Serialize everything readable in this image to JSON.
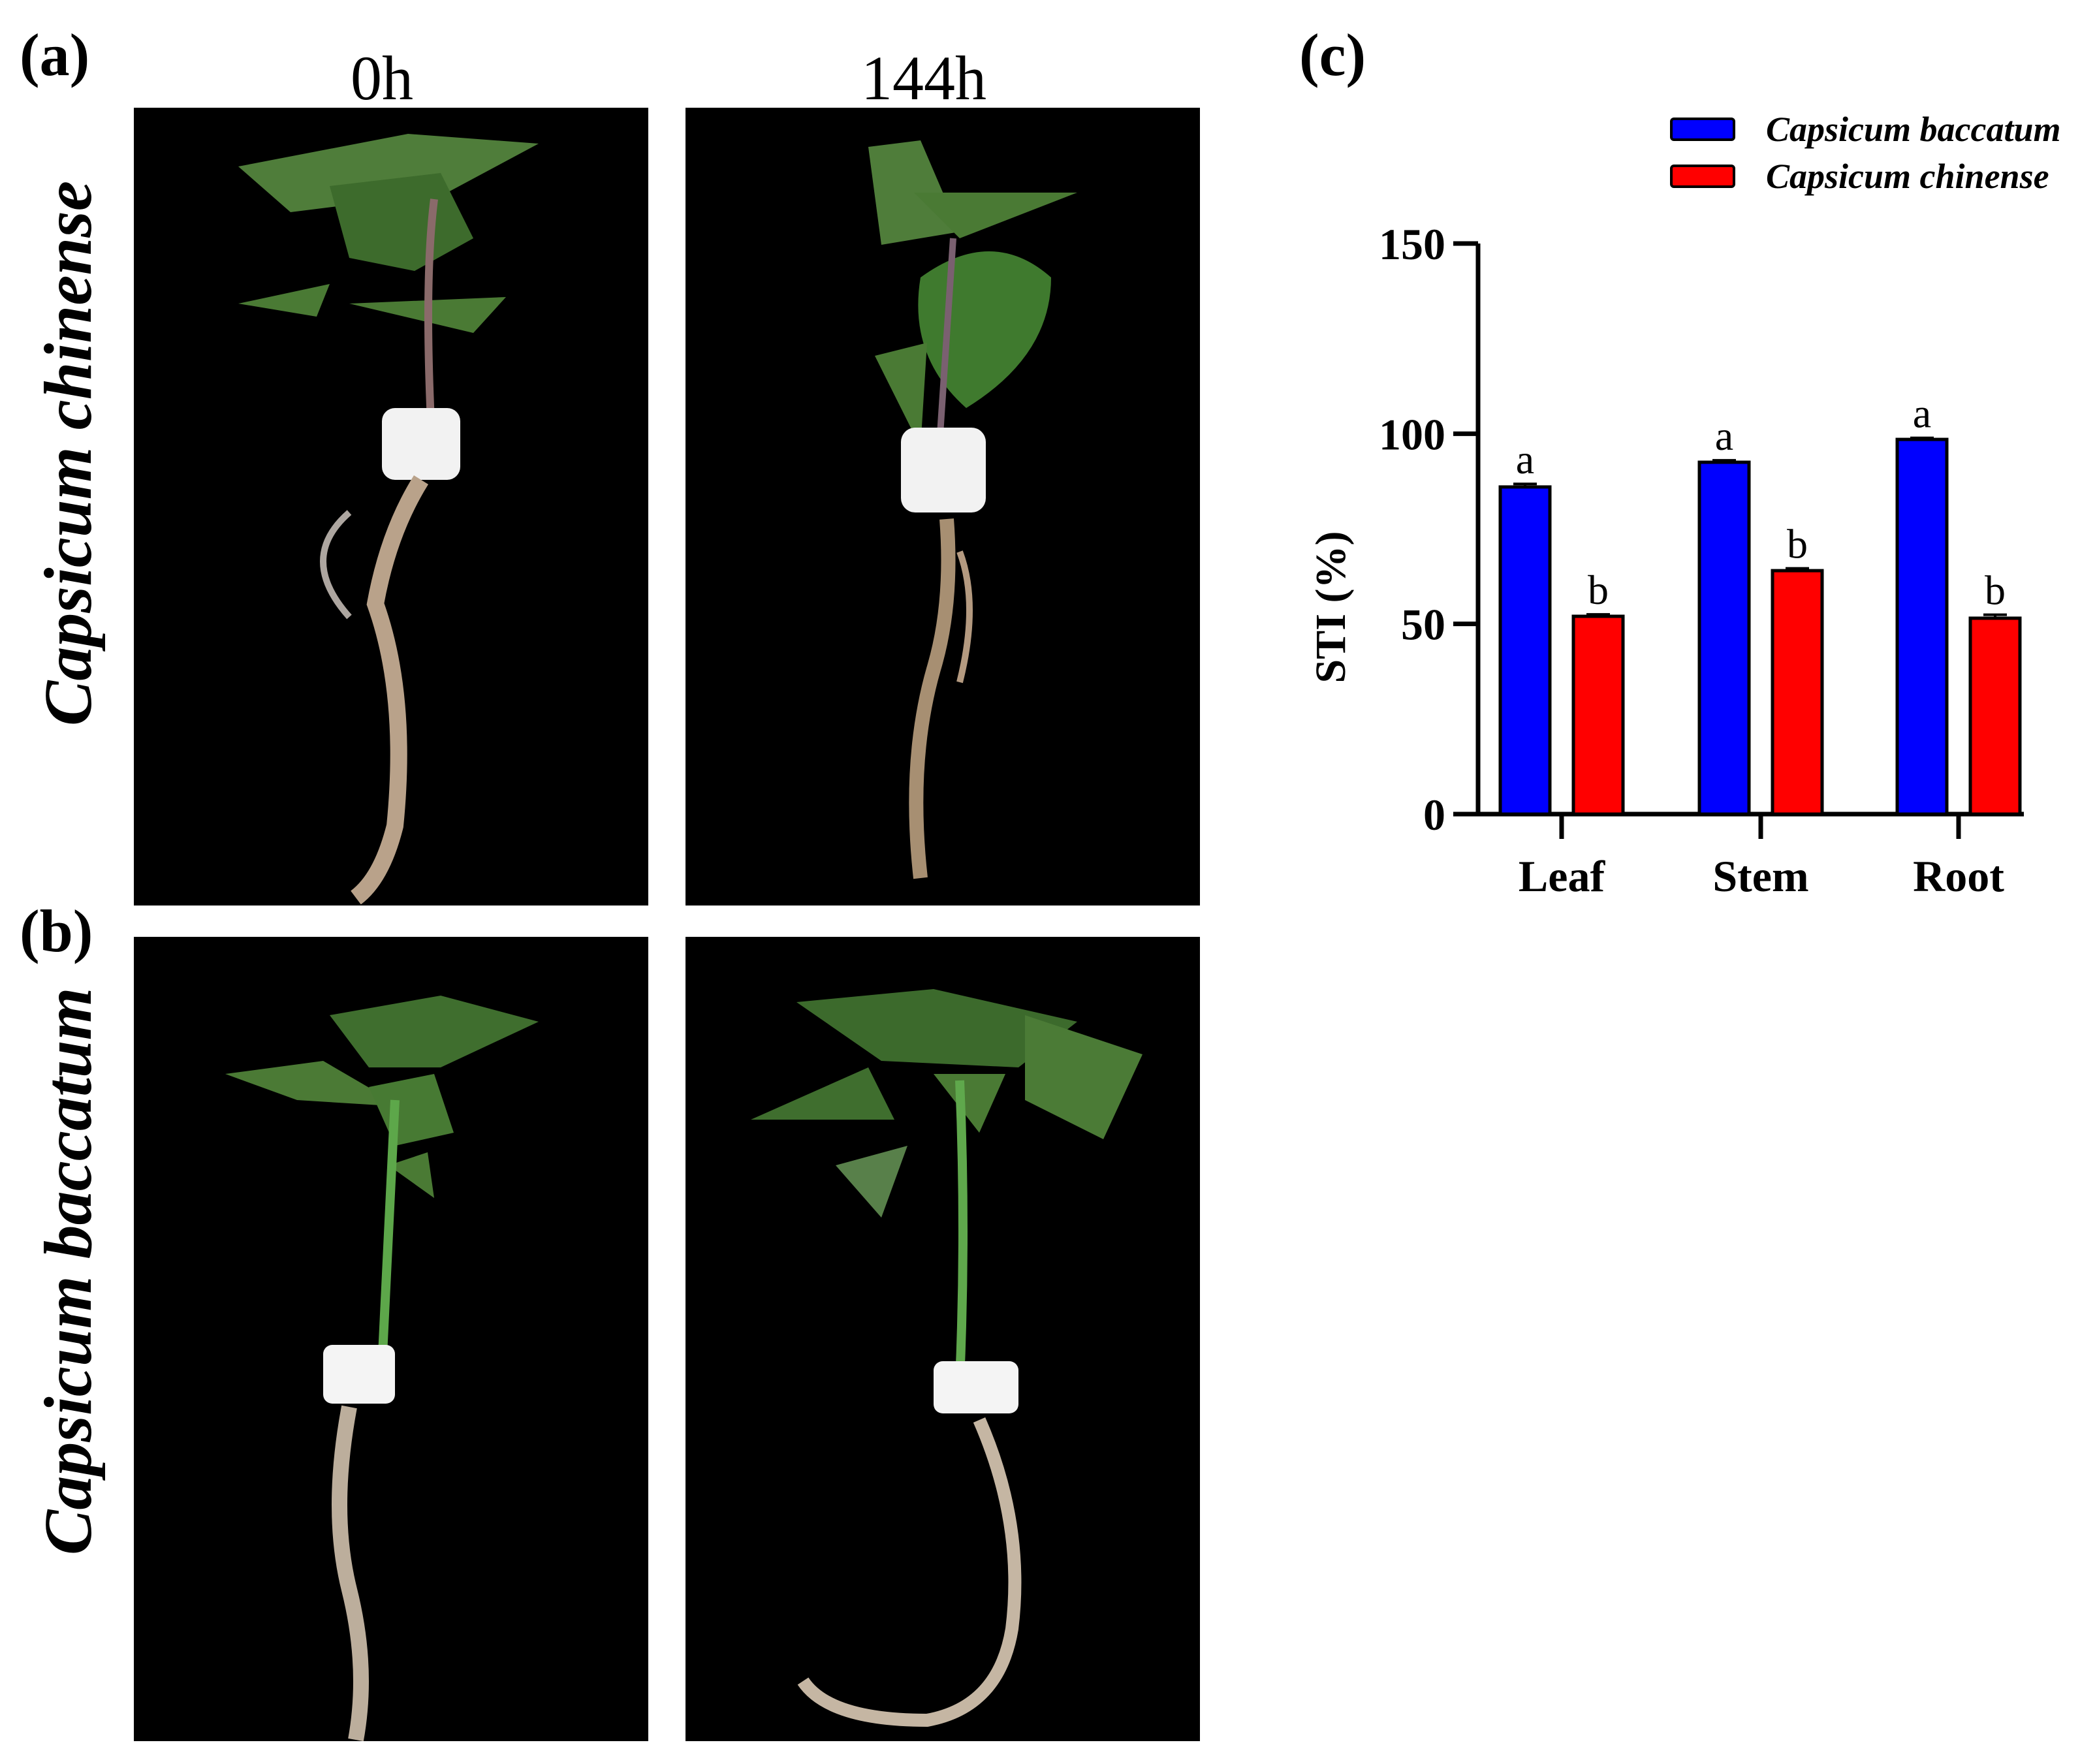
{
  "panels": {
    "a_label": "(a)",
    "b_label": "(b)",
    "c_label": "(c)"
  },
  "columns": [
    "0h",
    "144h"
  ],
  "rows": [
    "Capsicum chinense",
    "Capsicum baccatum"
  ],
  "colors": {
    "baccatum": "#0000ff",
    "chinense": "#ff0000",
    "photo_bg": "#000000"
  },
  "chart_data": {
    "type": "bar",
    "categories": [
      "Leaf",
      "Stem",
      "Root"
    ],
    "ylabel": "STI (%)",
    "ylim": [
      0,
      150
    ],
    "yticks": [
      0,
      50,
      100,
      150
    ],
    "legend_position": "top-right",
    "series": [
      {
        "name": "Capsicum baccatum",
        "color": "#0000ff",
        "values": [
          86,
          92.5,
          98.5
        ],
        "errors": [
          0.8,
          0.5,
          0.4
        ],
        "letters": [
          "a",
          "a",
          "a"
        ]
      },
      {
        "name": "Capsicum chinense",
        "color": "#ff0000",
        "values": [
          52,
          64,
          51.5
        ],
        "errors": [
          0.5,
          0.6,
          0.9
        ],
        "letters": [
          "b",
          "b",
          "b"
        ]
      }
    ]
  }
}
